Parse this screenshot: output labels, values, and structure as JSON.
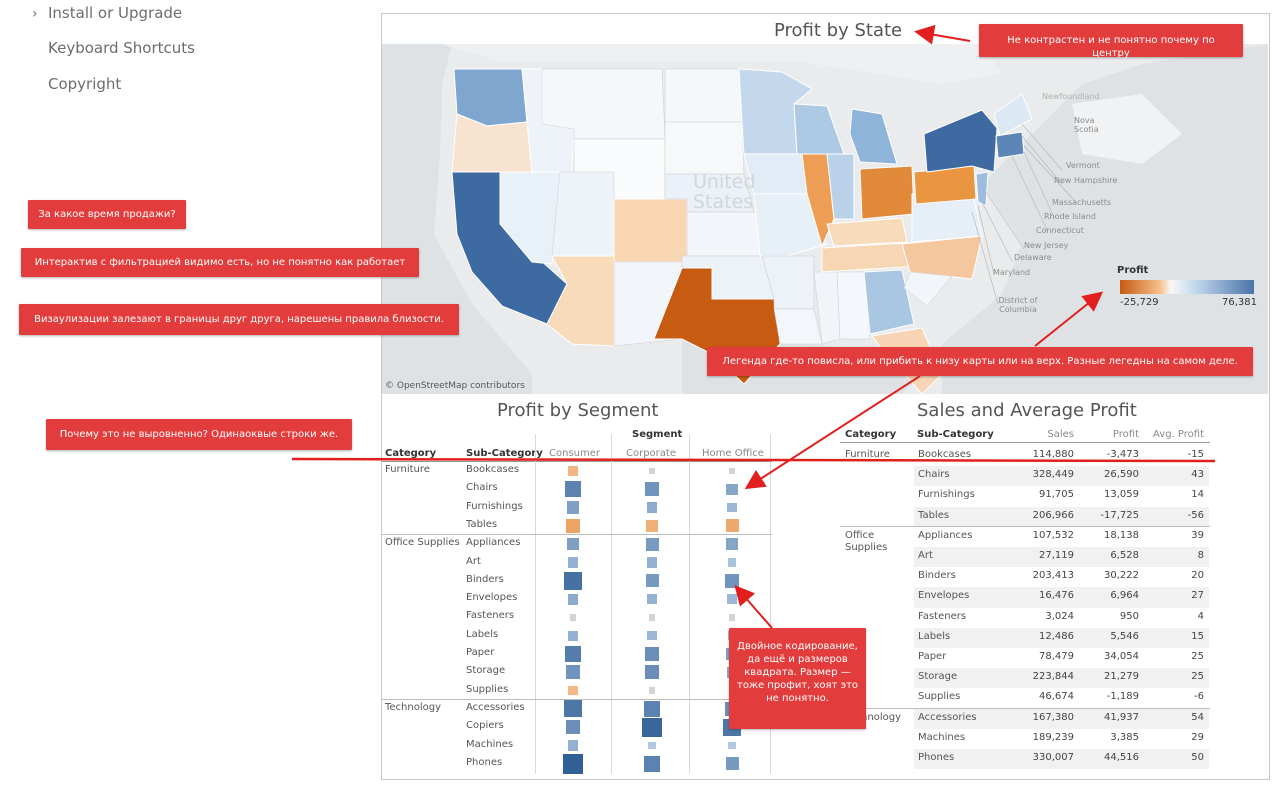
{
  "nav": {
    "install_upgrade": "Install or Upgrade",
    "keyboard_shortcuts": "Keyboard Shortcuts",
    "copyright": "Copyright"
  },
  "map": {
    "title": "Profit by State",
    "credit": "© OpenStreetMap contributors",
    "country_label": [
      "United",
      "States"
    ],
    "place_labels": [
      "Vermont",
      "New Hampshire",
      "Massachusetts",
      "Rhode Island",
      "Connecticut",
      "New Jersey",
      "Delaware",
      "Maryland",
      "District of Columbia",
      "Nova Scotia",
      "Newfoundland"
    ],
    "legend": {
      "title": "Profit",
      "min": "-25,729",
      "max": "76,381"
    }
  },
  "segment_chart": {
    "title": "Profit by Segment",
    "header_category": "Category",
    "header_subcategory": "Sub-Category",
    "header_segment": "Segment",
    "segments": [
      "Consumer",
      "Corporate",
      "Home Office"
    ]
  },
  "sales_table": {
    "title": "Sales and Average Profit",
    "columns": [
      "Category",
      "Sub-Category",
      "Sales",
      "Profit",
      "Avg. Profit"
    ]
  },
  "chart_data": [
    {
      "type": "heatmap",
      "title": "Profit by Segment",
      "segments": [
        "Consumer",
        "Corporate",
        "Home Office"
      ],
      "rows": [
        {
          "category": "Furniture",
          "sub": "Bookcases",
          "profit": [
            -0.3,
            -0.05,
            -0.05
          ]
        },
        {
          "category": "Furniture",
          "sub": "Chairs",
          "profit": [
            0.7,
            0.55,
            0.4
          ]
        },
        {
          "category": "Furniture",
          "sub": "Furnishings",
          "profit": [
            0.45,
            0.35,
            0.25
          ]
        },
        {
          "category": "Furniture",
          "sub": "Tables",
          "profit": [
            -0.6,
            -0.4,
            -0.5
          ]
        },
        {
          "category": "Office Supplies",
          "sub": "Appliances",
          "profit": [
            0.45,
            0.5,
            0.4
          ]
        },
        {
          "category": "Office Supplies",
          "sub": "Art",
          "profit": [
            0.3,
            0.3,
            0.15
          ]
        },
        {
          "category": "Office Supplies",
          "sub": "Binders",
          "profit": [
            0.85,
            0.5,
            0.55
          ]
        },
        {
          "category": "Office Supplies",
          "sub": "Envelopes",
          "profit": [
            0.35,
            0.3,
            0.25
          ]
        },
        {
          "category": "Office Supplies",
          "sub": "Fasteners",
          "profit": [
            0.05,
            0.05,
            0.05
          ]
        },
        {
          "category": "Office Supplies",
          "sub": "Labels",
          "profit": [
            0.3,
            0.25,
            0.2
          ]
        },
        {
          "category": "Office Supplies",
          "sub": "Paper",
          "profit": [
            0.75,
            0.6,
            0.45
          ]
        },
        {
          "category": "Office Supplies",
          "sub": "Storage",
          "profit": [
            0.55,
            0.6,
            0.35
          ]
        },
        {
          "category": "Office Supplies",
          "sub": "Supplies",
          "profit": [
            -0.25,
            -0.05,
            -0.05
          ]
        },
        {
          "category": "Technology",
          "sub": "Accessories",
          "profit": [
            0.8,
            0.7,
            0.6
          ]
        },
        {
          "category": "Technology",
          "sub": "Copiers",
          "profit": [
            0.6,
            0.95,
            0.8
          ]
        },
        {
          "category": "Technology",
          "sub": "Machines",
          "profit": [
            0.3,
            0.1,
            0.1
          ]
        },
        {
          "category": "Technology",
          "sub": "Phones",
          "profit": [
            1.0,
            0.7,
            0.5
          ]
        }
      ]
    },
    {
      "type": "table",
      "title": "Sales and Average Profit",
      "columns": [
        "Category",
        "Sub-Category",
        "Sales",
        "Profit",
        "Avg. Profit"
      ],
      "rows": [
        [
          "Furniture",
          "Bookcases",
          "114,880",
          "-3,473",
          "-15"
        ],
        [
          "",
          "Chairs",
          "328,449",
          "26,590",
          "43"
        ],
        [
          "",
          "Furnishings",
          "91,705",
          "13,059",
          "14"
        ],
        [
          "",
          "Tables",
          "206,966",
          "-17,725",
          "-56"
        ],
        [
          "Office Supplies",
          "Appliances",
          "107,532",
          "18,138",
          "39"
        ],
        [
          "",
          "Art",
          "27,119",
          "6,528",
          "8"
        ],
        [
          "",
          "Binders",
          "203,413",
          "30,222",
          "20"
        ],
        [
          "",
          "Envelopes",
          "16,476",
          "6,964",
          "27"
        ],
        [
          "",
          "Fasteners",
          "3,024",
          "950",
          "4"
        ],
        [
          "",
          "Labels",
          "12,486",
          "5,546",
          "15"
        ],
        [
          "",
          "Paper",
          "78,479",
          "34,054",
          "25"
        ],
        [
          "",
          "Storage",
          "223,844",
          "21,279",
          "25"
        ],
        [
          "",
          "Supplies",
          "46,674",
          "-1,189",
          "-6"
        ],
        [
          "Technology",
          "Accessories",
          "167,380",
          "41,937",
          "54"
        ],
        [
          "",
          "Machines",
          "189,239",
          "3,385",
          "29"
        ],
        [
          "",
          "Phones",
          "330,007",
          "44,516",
          "50"
        ]
      ]
    }
  ],
  "annotations": {
    "title_note": "Не контрастен и не понятно почему по центру",
    "time_note": "За какое время продажи?",
    "filter_note": "Интерактив с фильтрацией видимо есть, но не понятно как работает",
    "overlap_note": "Визаулизации залезают в границы друг друга, нарешены правила близости.",
    "align_note": "Почему это не выровненно? Одинаоквые строки же.",
    "legend_note": "Легенда где-то повисла, или прибить к низу карты или на верх. Разные легедны на самом деле.",
    "encoding_note": "Двойное кодирование, да ещё и размеров квадрата. Размер — тоже профит, хоят это не понятно."
  },
  "colors": {
    "annotation_red": "#e33c3c",
    "negative_orange": "#c75b12",
    "positive_blue": "#4a74a8",
    "neutral_gray": "#d9d9d9"
  }
}
